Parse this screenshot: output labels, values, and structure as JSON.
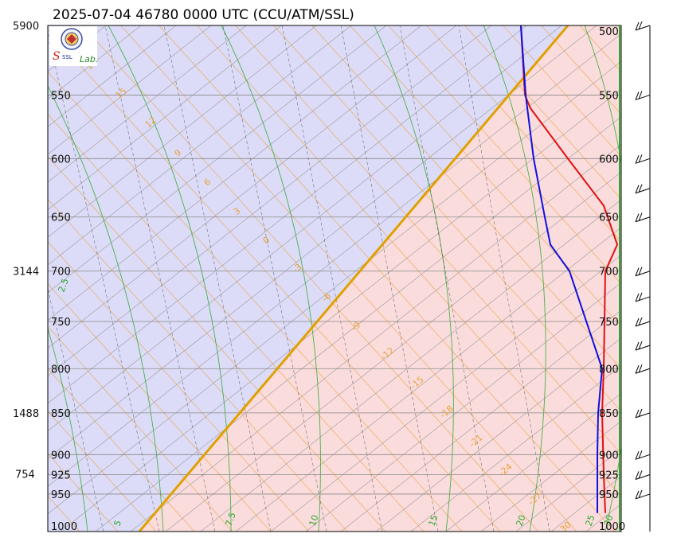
{
  "title": "2025-07-04 46780 0000 UTC (CCU/ATM/SSL)",
  "logo": {
    "text": "Lab.",
    "kind": "lab-seal"
  },
  "colors": {
    "unstable_fill": "#fbdcdc",
    "stable_fill": "#dcdcf8",
    "isobar": "#888888",
    "isotherm": "#999999",
    "dry_adiabat": "#e8a13a",
    "moist_adiabat": "#2ea82e",
    "mixing_ratio": "#555555",
    "parcel": "#e0a000",
    "temperature": "#e01010",
    "dewpoint": "#1010e0"
  },
  "chart_data": {
    "type": "line",
    "title": "2025-07-04 46780 0000 UTC (CCU/ATM/SSL)",
    "y_scale": "log pressure",
    "ylim": [
      1000,
      500
    ],
    "pressure_levels": [
      1000,
      950,
      925,
      900,
      850,
      800,
      750,
      700,
      650,
      600,
      550,
      500
    ],
    "height_labels": [
      {
        "p": 500,
        "text": "5900"
      },
      {
        "p": 700,
        "text": "3144"
      },
      {
        "p": 850,
        "text": "1488"
      },
      {
        "p": 925,
        "text": "754"
      }
    ],
    "dry_adiabat_labels": [
      "18",
      "15",
      "12",
      "9",
      "6",
      "3",
      "0",
      "-3",
      "-6",
      "-9",
      "-12",
      "-15",
      "-18",
      "-21",
      "-24",
      "-27",
      "-30"
    ],
    "moist_adiabat_labels": [
      "2.5",
      "5",
      "7.5",
      "10",
      "15",
      "20",
      "25",
      "30"
    ],
    "mixing_ratio_labels": [
      "3",
      "6",
      "9",
      "12",
      "15",
      "18",
      "24",
      "27",
      "30"
    ],
    "series": [
      {
        "key": "temperature",
        "color": "#e01010",
        "points": [
          {
            "p": 975,
            "v": 760
          },
          {
            "p": 925,
            "v": 758
          },
          {
            "p": 850,
            "v": 756
          },
          {
            "p": 800,
            "v": 758
          },
          {
            "p": 700,
            "v": 760
          },
          {
            "p": 675,
            "v": 775
          },
          {
            "p": 640,
            "v": 758
          },
          {
            "p": 600,
            "v": 713
          },
          {
            "p": 560,
            "v": 666
          },
          {
            "p": 550,
            "v": 659
          },
          {
            "p": 500,
            "v": 654
          }
        ]
      },
      {
        "key": "dewpoint",
        "color": "#1010e0",
        "points": [
          {
            "p": 975,
            "v": 750
          },
          {
            "p": 900,
            "v": 750
          },
          {
            "p": 850,
            "v": 751
          },
          {
            "p": 800,
            "v": 756
          },
          {
            "p": 700,
            "v": 715
          },
          {
            "p": 675,
            "v": 691
          },
          {
            "p": 650,
            "v": 684
          },
          {
            "p": 600,
            "v": 670
          },
          {
            "p": 550,
            "v": 660
          },
          {
            "p": 500,
            "v": 654
          }
        ]
      }
    ],
    "parcel_boundary": [
      {
        "p": 1000,
        "v": 175
      },
      {
        "p": 500,
        "v": 713
      }
    ],
    "wind_barbs": [
      {
        "p": 950,
        "dir": 240,
        "speed": 15
      },
      {
        "p": 925,
        "dir": 245,
        "speed": 15
      },
      {
        "p": 900,
        "dir": 240,
        "speed": 15
      },
      {
        "p": 850,
        "dir": 250,
        "speed": 20
      },
      {
        "p": 800,
        "dir": 250,
        "speed": 15
      },
      {
        "p": 775,
        "dir": 250,
        "speed": 15
      },
      {
        "p": 750,
        "dir": 245,
        "speed": 15
      },
      {
        "p": 725,
        "dir": 245,
        "speed": 15
      },
      {
        "p": 700,
        "dir": 250,
        "speed": 15
      },
      {
        "p": 650,
        "dir": 255,
        "speed": 15
      },
      {
        "p": 625,
        "dir": 255,
        "speed": 15
      },
      {
        "p": 600,
        "dir": 255,
        "speed": 20
      },
      {
        "p": 550,
        "dir": 260,
        "speed": 15
      },
      {
        "p": 500,
        "dir": 265,
        "speed": 15
      }
    ]
  }
}
